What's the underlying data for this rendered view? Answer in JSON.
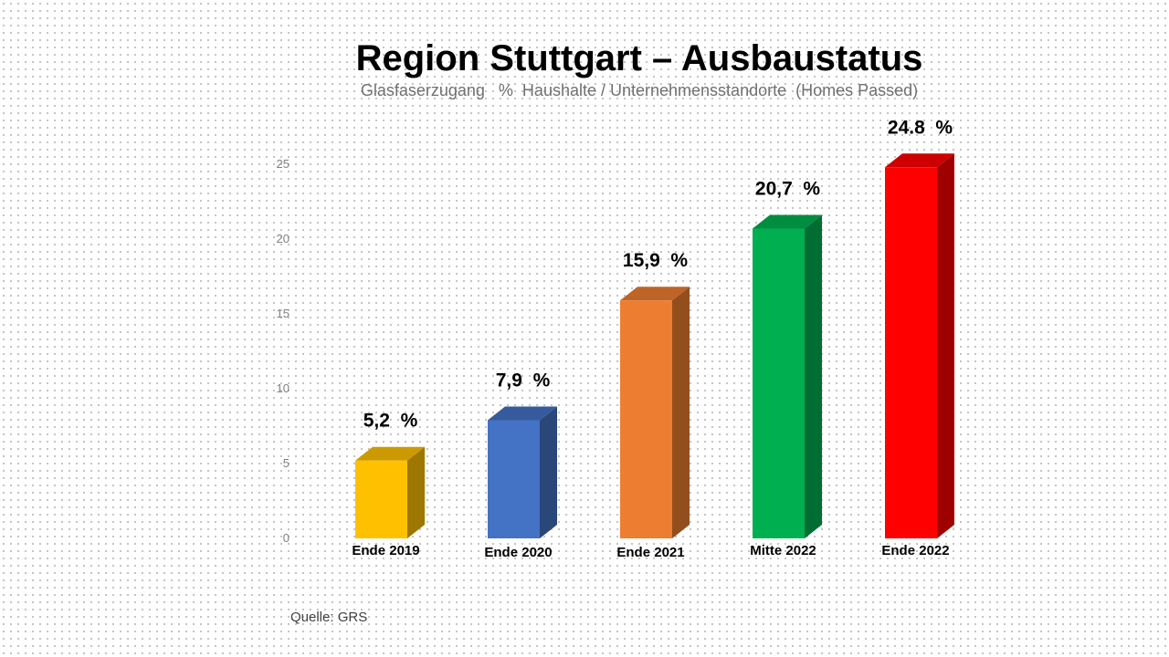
{
  "title": "Region Stuttgart – Ausbaustatus",
  "subtitle": "Glasfaserzugang   %  Haushalte / Unternehmensstandorte  (Homes Passed)",
  "source": "Quelle: GRS",
  "chart_data": {
    "type": "bar",
    "categories": [
      "Ende 2019",
      "Ende 2020",
      "Ende 2021",
      "Mitte 2022",
      "Ende 2022"
    ],
    "values": [
      5.2,
      7.9,
      15.9,
      20.7,
      24.8
    ],
    "data_labels": [
      "5,2  %",
      "7,9  %",
      "15,9  %",
      "20,7  %",
      "24.8  %"
    ],
    "colors": [
      "#ffc000",
      "#4472c4",
      "#ed7d31",
      "#00b050",
      "#ff0000"
    ],
    "yticks": [
      0,
      5,
      10,
      15,
      20,
      25
    ],
    "ylim": [
      0,
      25
    ],
    "grid": false,
    "legend": "none",
    "style": "3d-column"
  }
}
